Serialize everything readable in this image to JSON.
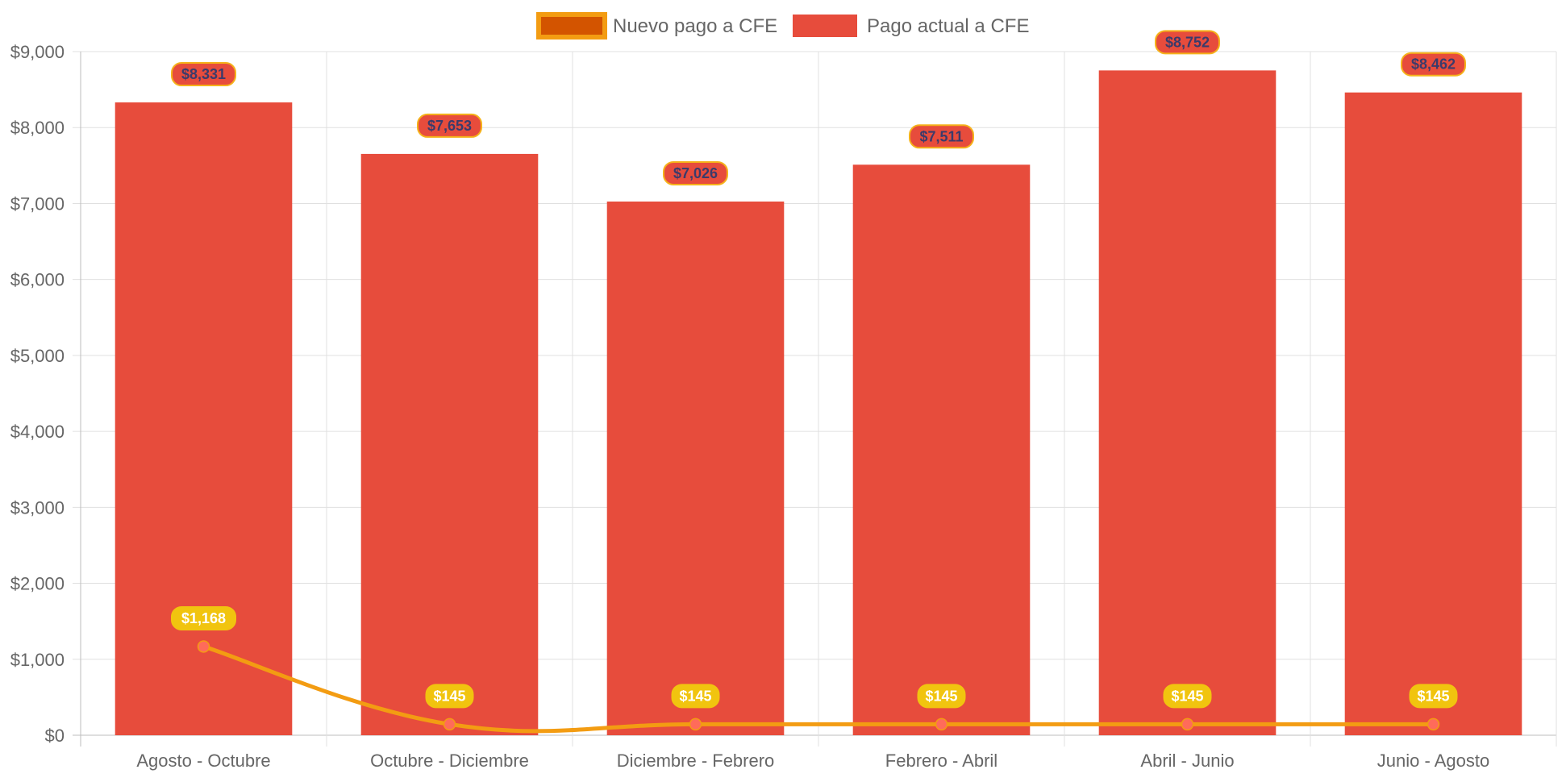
{
  "chart_data": {
    "type": "bar",
    "categories": [
      "Agosto - Octubre",
      "Octubre - Diciembre",
      "Diciembre - Febrero",
      "Febrero - Abril",
      "Abril - Junio",
      "Junio - Agosto"
    ],
    "series": [
      {
        "name": "Nuevo pago a CFE",
        "type": "line",
        "values": [
          1168,
          145,
          145,
          145,
          145,
          145
        ],
        "labels": [
          "$1,168",
          "$145",
          "$145",
          "$145",
          "$145",
          "$145"
        ],
        "color": "#f39c12",
        "point_color": "#ff6b5a",
        "legend_fill": "#d35400"
      },
      {
        "name": "Pago actual a CFE",
        "type": "bar",
        "values": [
          8331,
          7653,
          7026,
          7511,
          8752,
          8462
        ],
        "labels": [
          "$8,331",
          "$7,653",
          "$7,026",
          "$7,511",
          "$8,752",
          "$8,462"
        ],
        "color": "#e74c3c"
      }
    ],
    "ylim": [
      0,
      9000
    ],
    "yticks": [
      0,
      1000,
      2000,
      3000,
      4000,
      5000,
      6000,
      7000,
      8000,
      9000
    ],
    "ytick_labels": [
      "$0",
      "$1,000",
      "$2,000",
      "$3,000",
      "$4,000",
      "$5,000",
      "$6,000",
      "$7,000",
      "$8,000",
      "$9,000"
    ],
    "grid": true,
    "legend_position": "top",
    "title": "",
    "xlabel": "",
    "ylabel": ""
  }
}
